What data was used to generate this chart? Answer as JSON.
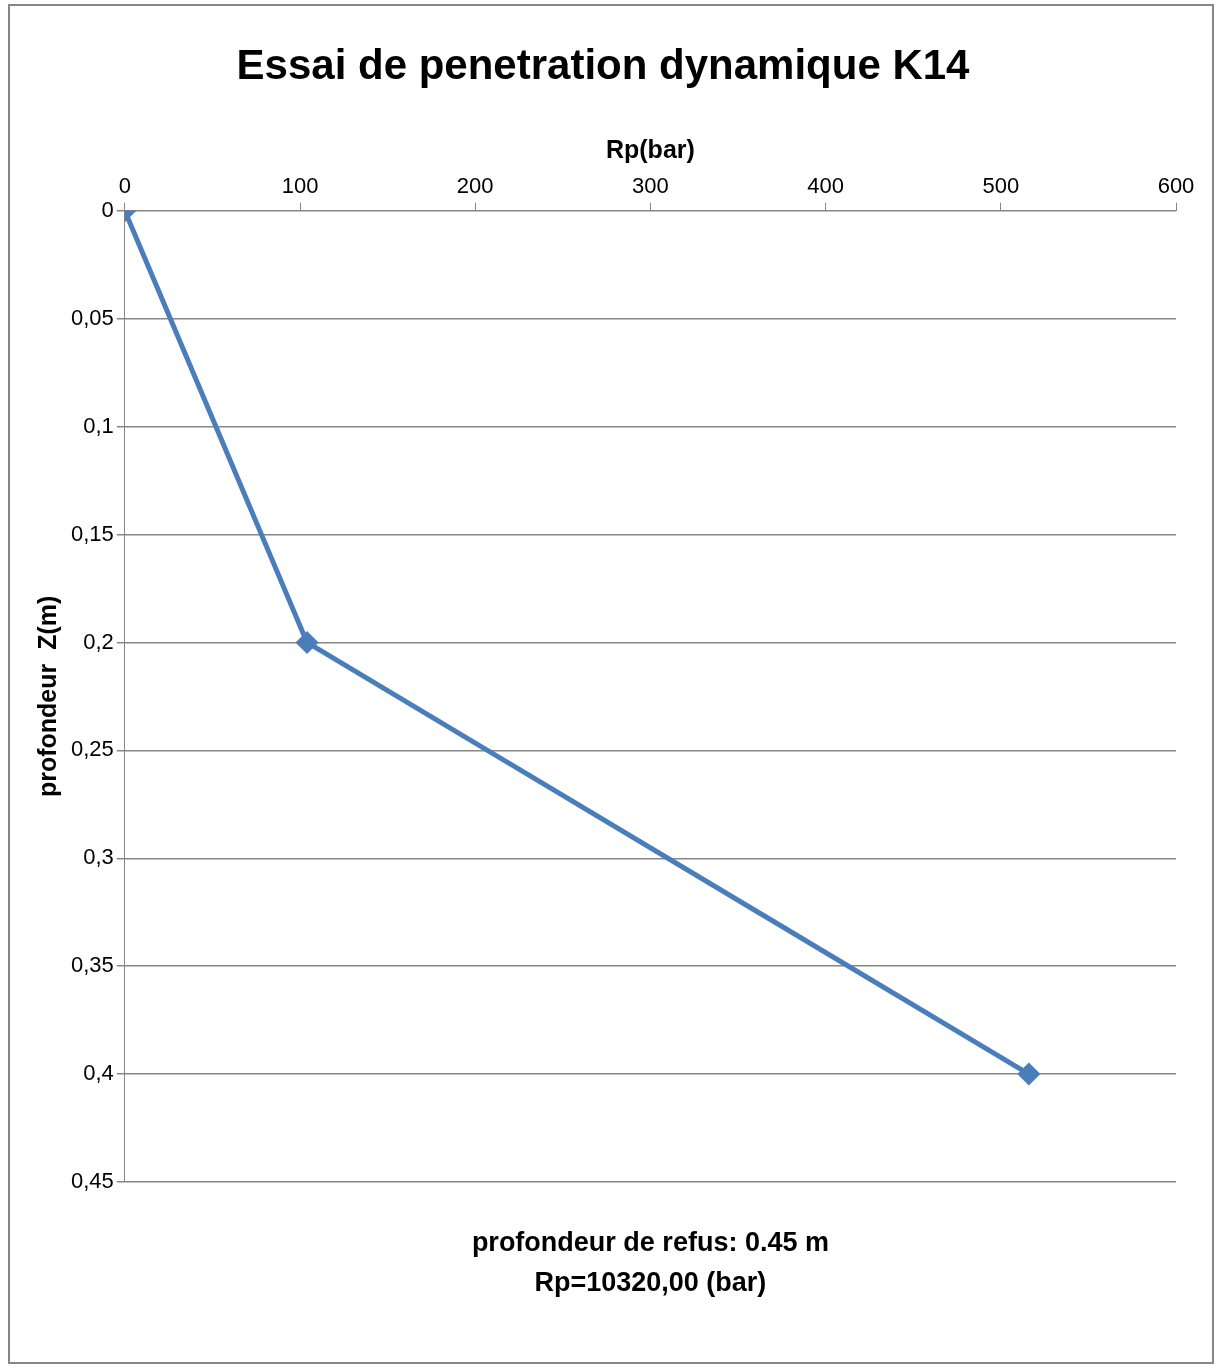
{
  "chart_data": {
    "type": "line",
    "title": "Essai de penetration dynamique K14",
    "xlabel": "Rp(bar)",
    "ylabel": "profondeur  Z(m)",
    "x": [
      0,
      104,
      516
    ],
    "series": [
      {
        "color": "#4a7ebb",
        "values": [
          0,
          0.2,
          0.4
        ]
      }
    ],
    "xlim": [
      0,
      600
    ],
    "xticks": [
      0,
      100,
      200,
      300,
      400,
      500,
      600
    ],
    "ylim": [
      0.45,
      0
    ],
    "yticks": [
      {
        "value": 0,
        "label": "0"
      },
      {
        "value": 0.05,
        "label": "0,05"
      },
      {
        "value": 0.1,
        "label": "0,1"
      },
      {
        "value": 0.15,
        "label": "0,15"
      },
      {
        "value": 0.2,
        "label": "0,2"
      },
      {
        "value": 0.25,
        "label": "0,25"
      },
      {
        "value": 0.3,
        "label": "0,3"
      },
      {
        "value": 0.35,
        "label": "0,35"
      },
      {
        "value": 0.4,
        "label": "0,4"
      },
      {
        "value": 0.45,
        "label": "0,45"
      }
    ],
    "grid": "y",
    "legend": false,
    "marker": "diamond",
    "line_style": "solid",
    "annotations": [
      "profondeur de refus: 0.45 m",
      "Rp=10320,00 (bar)"
    ]
  }
}
